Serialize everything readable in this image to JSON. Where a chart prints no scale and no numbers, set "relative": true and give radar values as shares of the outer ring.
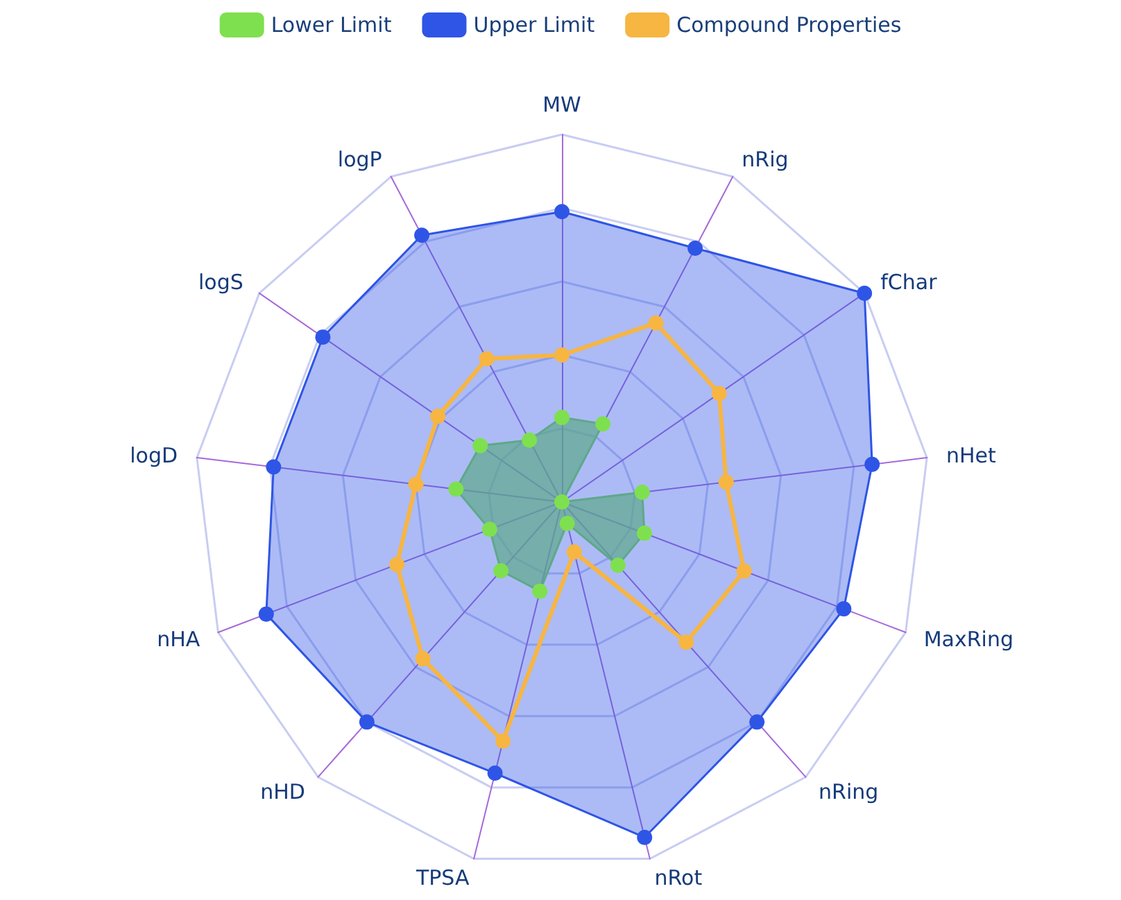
{
  "chart_data": {
    "type": "radar",
    "relative": true,
    "legend": "top",
    "marker": "circle",
    "categories": [
      "MW",
      "nRig",
      "fChar",
      "nHet",
      "MaxRing",
      "nRing",
      "nRot",
      "TPSA",
      "nHD",
      "nHA",
      "logD",
      "logS",
      "logP"
    ],
    "series": [
      {
        "name": "Lower Limit",
        "color": "#7ee04f",
        "values": [
          0.23,
          0.24,
          0,
          0.22,
          0.24,
          0.23,
          0.06,
          0.25,
          0.25,
          0.21,
          0.29,
          0.27,
          0.19
        ]
      },
      {
        "name": "Upper Limit",
        "color": "#2f55e6",
        "values": [
          0.79,
          0.78,
          1,
          0.85,
          0.82,
          0.8,
          0.94,
          0.76,
          0.8,
          0.86,
          0.79,
          0.79,
          0.82
        ]
      },
      {
        "name": "Compound Properties",
        "color": "#f7b541",
        "values": [
          0.4,
          0.55,
          0.52,
          0.45,
          0.53,
          0.51,
          0.14,
          0.67,
          0.57,
          0.48,
          0.4,
          0.41,
          0.44
        ]
      }
    ]
  }
}
